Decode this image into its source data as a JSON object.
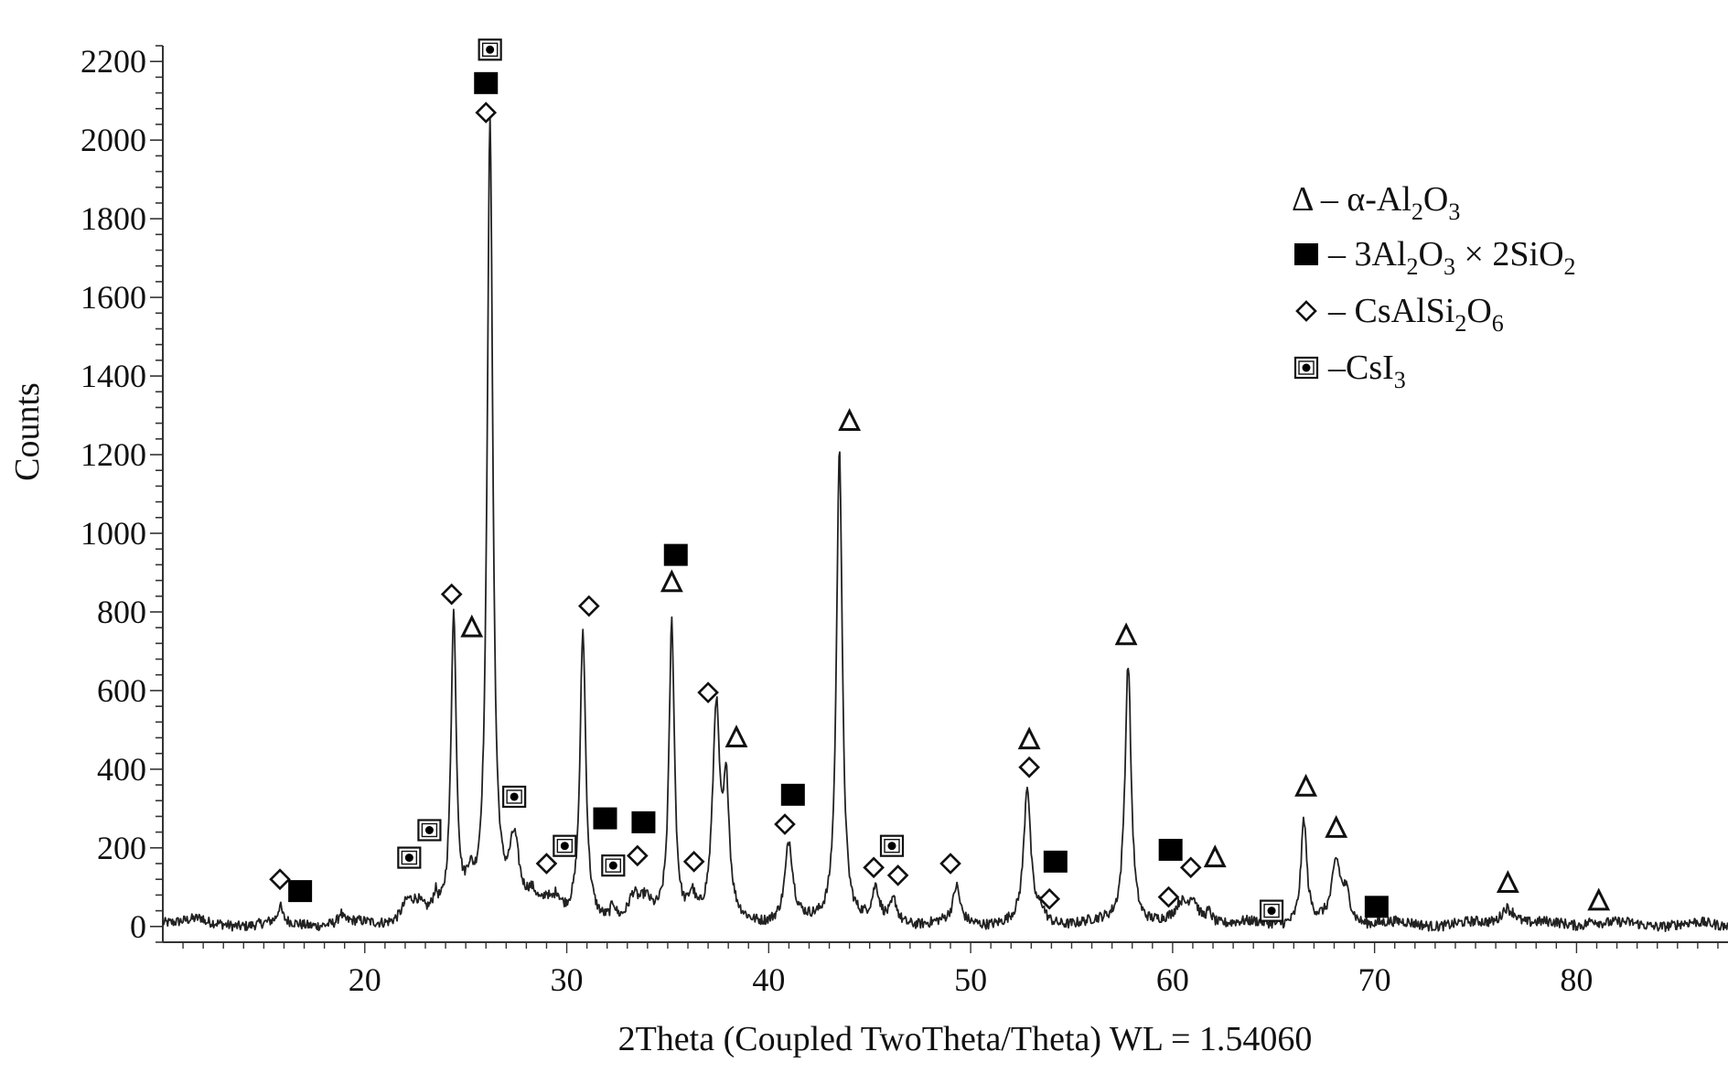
{
  "chart_data": {
    "type": "line",
    "title": "",
    "xlabel": "2Theta (Coupled TwoTheta/Theta) WL = 1.54060",
    "ylabel": "Counts",
    "xlim": [
      10,
      87.5
    ],
    "ylim": [
      -40,
      2240
    ],
    "x_ticks": [
      20,
      30,
      40,
      50,
      60,
      70,
      80
    ],
    "y_ticks": [
      0,
      200,
      400,
      600,
      800,
      1000,
      1200,
      1400,
      1600,
      1800,
      2000,
      2200
    ],
    "grid": false,
    "baseline_counts": 5,
    "peaks": [
      {
        "x": 15.8,
        "h": 40,
        "w": 0.13
      },
      {
        "x": 18.8,
        "h": 25,
        "w": 0.1
      },
      {
        "x": 22.1,
        "h": 45,
        "w": 0.35
      },
      {
        "x": 22.6,
        "h": 35,
        "w": 0.35
      },
      {
        "x": 23.5,
        "h": 45,
        "w": 0.15
      },
      {
        "x": 24.4,
        "h": 770,
        "w": 0.16
      },
      {
        "x": 25.2,
        "h": 80,
        "w": 0.25
      },
      {
        "x": 26.2,
        "h": 2020,
        "w": 0.17
      },
      {
        "x": 27.4,
        "h": 180,
        "w": 0.3
      },
      {
        "x": 28.3,
        "h": 60,
        "w": 0.4
      },
      {
        "x": 29.0,
        "h": 40,
        "w": 0.2
      },
      {
        "x": 29.5,
        "h": 50,
        "w": 0.25
      },
      {
        "x": 30.8,
        "h": 730,
        "w": 0.17
      },
      {
        "x": 32.3,
        "h": 40,
        "w": 0.15
      },
      {
        "x": 33.3,
        "h": 60,
        "w": 0.3
      },
      {
        "x": 33.9,
        "h": 45,
        "w": 0.3
      },
      {
        "x": 35.2,
        "h": 760,
        "w": 0.16
      },
      {
        "x": 36.2,
        "h": 60,
        "w": 0.2
      },
      {
        "x": 37.4,
        "h": 530,
        "w": 0.21
      },
      {
        "x": 37.9,
        "h": 310,
        "w": 0.18
      },
      {
        "x": 41.0,
        "h": 200,
        "w": 0.23
      },
      {
        "x": 43.5,
        "h": 1220,
        "w": 0.17
      },
      {
        "x": 45.3,
        "h": 80,
        "w": 0.2
      },
      {
        "x": 46.2,
        "h": 55,
        "w": 0.2
      },
      {
        "x": 49.3,
        "h": 90,
        "w": 0.2
      },
      {
        "x": 52.8,
        "h": 345,
        "w": 0.2
      },
      {
        "x": 53.5,
        "h": 30,
        "w": 0.2
      },
      {
        "x": 57.6,
        "h": 30,
        "w": 0.15
      },
      {
        "x": 57.8,
        "h": 655,
        "w": 0.18
      },
      {
        "x": 60.4,
        "h": 40,
        "w": 0.3
      },
      {
        "x": 61.0,
        "h": 60,
        "w": 0.3
      },
      {
        "x": 61.8,
        "h": 30,
        "w": 0.2
      },
      {
        "x": 66.5,
        "h": 265,
        "w": 0.17
      },
      {
        "x": 68.1,
        "h": 150,
        "w": 0.25
      },
      {
        "x": 68.6,
        "h": 70,
        "w": 0.25
      },
      {
        "x": 76.5,
        "h": 40,
        "w": 0.3
      },
      {
        "x": 76.9,
        "h": 20,
        "w": 0.3
      },
      {
        "x": 80.8,
        "h": 15,
        "w": 0.3
      }
    ],
    "markers": [
      {
        "phase": "CsAlSi2O6",
        "symbol": "diamond",
        "x": 15.8,
        "y": 120
      },
      {
        "phase": "3Al2O3x2SiO2",
        "symbol": "square",
        "x": 16.8,
        "y": 90
      },
      {
        "phase": "CsI3",
        "symbol": "dotbox",
        "x": 22.2,
        "y": 175
      },
      {
        "phase": "CsI3",
        "symbol": "dotbox",
        "x": 23.2,
        "y": 245
      },
      {
        "phase": "CsAlSi2O6",
        "symbol": "diamond",
        "x": 24.3,
        "y": 845
      },
      {
        "phase": "a-Al2O3",
        "symbol": "triangle",
        "x": 25.3,
        "y": 760
      },
      {
        "phase": "CsAlSi2O6",
        "symbol": "diamond",
        "x": 26.0,
        "y": 2070
      },
      {
        "phase": "3Al2O3x2SiO2",
        "symbol": "square",
        "x": 26.0,
        "y": 2145
      },
      {
        "phase": "CsI3",
        "symbol": "dotbox",
        "x": 26.2,
        "y": 2230
      },
      {
        "phase": "CsI3",
        "symbol": "dotbox",
        "x": 27.4,
        "y": 330
      },
      {
        "phase": "CsAlSi2O6",
        "symbol": "diamond",
        "x": 29.0,
        "y": 160
      },
      {
        "phase": "CsI3",
        "symbol": "dotbox",
        "x": 29.9,
        "y": 205
      },
      {
        "phase": "CsAlSi2O6",
        "symbol": "diamond",
        "x": 31.1,
        "y": 815
      },
      {
        "phase": "3Al2O3x2SiO2",
        "symbol": "square",
        "x": 31.9,
        "y": 275
      },
      {
        "phase": "CsI3",
        "symbol": "dotbox",
        "x": 32.3,
        "y": 155
      },
      {
        "phase": "CsAlSi2O6",
        "symbol": "diamond",
        "x": 33.5,
        "y": 180
      },
      {
        "phase": "3Al2O3x2SiO2",
        "symbol": "square",
        "x": 33.8,
        "y": 265
      },
      {
        "phase": "a-Al2O3",
        "symbol": "triangle",
        "x": 35.2,
        "y": 875
      },
      {
        "phase": "3Al2O3x2SiO2",
        "symbol": "square",
        "x": 35.4,
        "y": 945
      },
      {
        "phase": "CsAlSi2O6",
        "symbol": "diamond",
        "x": 36.3,
        "y": 165
      },
      {
        "phase": "CsAlSi2O6",
        "symbol": "diamond",
        "x": 37.0,
        "y": 595
      },
      {
        "phase": "a-Al2O3",
        "symbol": "triangle",
        "x": 38.4,
        "y": 480
      },
      {
        "phase": "CsAlSi2O6",
        "symbol": "diamond",
        "x": 40.8,
        "y": 260
      },
      {
        "phase": "3Al2O3x2SiO2",
        "symbol": "square",
        "x": 41.2,
        "y": 335
      },
      {
        "phase": "a-Al2O3",
        "symbol": "triangle",
        "x": 44.0,
        "y": 1285
      },
      {
        "phase": "CsAlSi2O6",
        "symbol": "diamond",
        "x": 45.2,
        "y": 150
      },
      {
        "phase": "CsI3",
        "symbol": "dotbox",
        "x": 46.1,
        "y": 205
      },
      {
        "phase": "CsAlSi2O6",
        "symbol": "diamond",
        "x": 46.4,
        "y": 130
      },
      {
        "phase": "CsAlSi2O6",
        "symbol": "diamond",
        "x": 49.0,
        "y": 160
      },
      {
        "phase": "a-Al2O3",
        "symbol": "triangle",
        "x": 52.9,
        "y": 475
      },
      {
        "phase": "CsAlSi2O6",
        "symbol": "diamond",
        "x": 52.9,
        "y": 405
      },
      {
        "phase": "CsAlSi2O6",
        "symbol": "diamond",
        "x": 53.9,
        "y": 70
      },
      {
        "phase": "3Al2O3x2SiO2",
        "symbol": "square",
        "x": 54.2,
        "y": 165
      },
      {
        "phase": "a-Al2O3",
        "symbol": "triangle",
        "x": 57.7,
        "y": 740
      },
      {
        "phase": "CsAlSi2O6",
        "symbol": "diamond",
        "x": 59.8,
        "y": 75
      },
      {
        "phase": "3Al2O3x2SiO2",
        "symbol": "square",
        "x": 59.9,
        "y": 195
      },
      {
        "phase": "CsAlSi2O6",
        "symbol": "diamond",
        "x": 60.9,
        "y": 150
      },
      {
        "phase": "a-Al2O3",
        "symbol": "triangle",
        "x": 62.1,
        "y": 175
      },
      {
        "phase": "CsI3",
        "symbol": "dotbox",
        "x": 64.9,
        "y": 40
      },
      {
        "phase": "a-Al2O3",
        "symbol": "triangle",
        "x": 66.6,
        "y": 355
      },
      {
        "phase": "a-Al2O3",
        "symbol": "triangle",
        "x": 68.1,
        "y": 250
      },
      {
        "phase": "3Al2O3x2SiO2",
        "symbol": "square",
        "x": 70.1,
        "y": 50
      },
      {
        "phase": "a-Al2O3",
        "symbol": "triangle",
        "x": 76.6,
        "y": 110
      },
      {
        "phase": "a-Al2O3",
        "symbol": "triangle",
        "x": 81.1,
        "y": 65
      }
    ],
    "legend_position": "top-right",
    "legend": [
      {
        "symbol": "triangle",
        "parts": [
          [
            "Δ – α-Al",
            ""
          ],
          [
            "2",
            "sub"
          ],
          [
            "O",
            ""
          ],
          [
            "3",
            "sub"
          ]
        ]
      },
      {
        "symbol": "square",
        "parts": [
          [
            "– 3Al",
            ""
          ],
          [
            "2",
            "sub"
          ],
          [
            "O",
            ""
          ],
          [
            "3",
            "sub"
          ],
          [
            " × 2SiO",
            ""
          ],
          [
            "2",
            "sub"
          ]
        ]
      },
      {
        "symbol": "diamond",
        "parts": [
          [
            "– CsAlSi",
            ""
          ],
          [
            "2",
            "sub"
          ],
          [
            "O",
            ""
          ],
          [
            "6",
            "sub"
          ]
        ]
      },
      {
        "symbol": "dotbox",
        "parts": [
          [
            "–CsI",
            ""
          ],
          [
            "3",
            "sub"
          ]
        ]
      }
    ]
  }
}
